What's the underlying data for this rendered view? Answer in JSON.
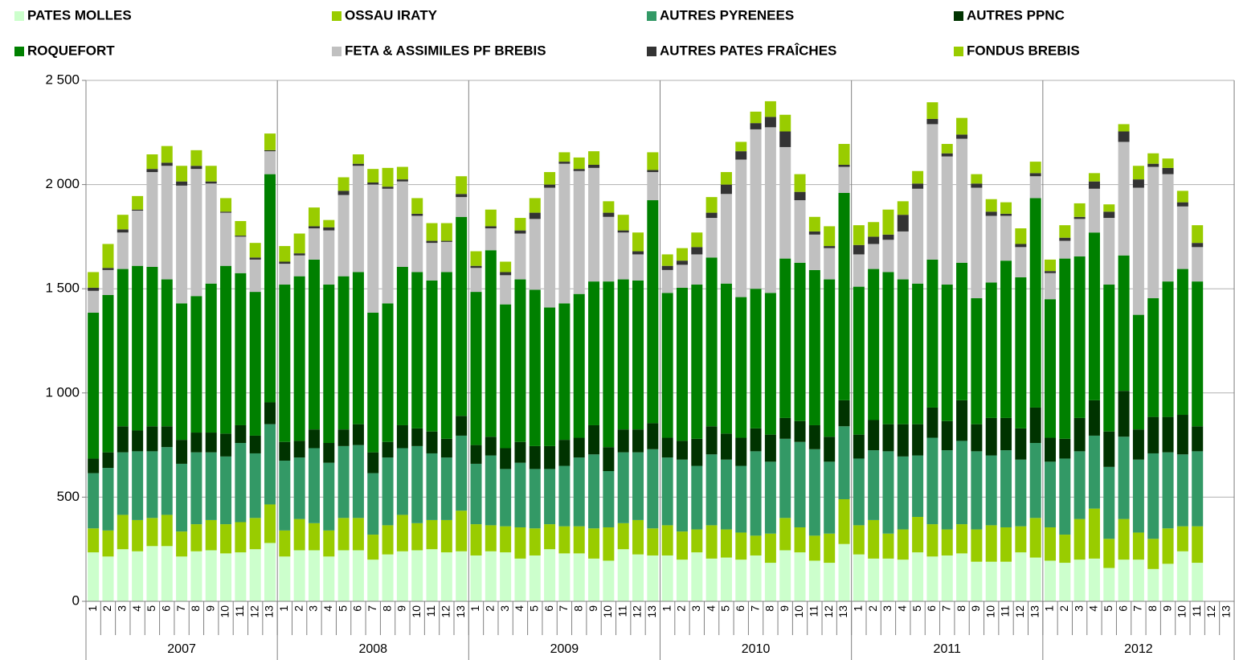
{
  "chart_data": {
    "type": "stacked_bar",
    "categories": [
      "1",
      "2",
      "3",
      "4",
      "5",
      "6",
      "7",
      "8",
      "9",
      "10",
      "11",
      "12",
      "13",
      "1",
      "2",
      "3",
      "4",
      "5",
      "6",
      "7",
      "8",
      "9",
      "10",
      "11",
      "12",
      "13",
      "1",
      "2",
      "3",
      "4",
      "5",
      "6",
      "7",
      "8",
      "9",
      "10",
      "11",
      "12",
      "13",
      "1",
      "2",
      "3",
      "4",
      "5",
      "6",
      "7",
      "8",
      "9",
      "10",
      "11",
      "12",
      "13",
      "1",
      "2",
      "3",
      "4",
      "5",
      "6",
      "7",
      "8",
      "9",
      "10",
      "11",
      "12",
      "13",
      "1",
      "2",
      "3",
      "4",
      "5",
      "6",
      "7",
      "8",
      "9",
      "10",
      "11",
      "12",
      "13"
    ],
    "category_groups": [
      "2007",
      "2008",
      "2009",
      "2010",
      "2011",
      "2012"
    ],
    "ylim": [
      0,
      2500
    ],
    "yticks": [
      0,
      500,
      {
        "value": 1000,
        "label": "1 000"
      },
      {
        "value": 1500,
        "label": "1 500"
      },
      {
        "value": 2000,
        "label": "2 000"
      },
      {
        "value": 2500,
        "label": "2 500"
      }
    ],
    "grid": true,
    "series": [
      {
        "name": "PATES MOLLES",
        "color": "#ccffcc",
        "values": [
          235,
          215,
          250,
          240,
          265,
          265,
          215,
          240,
          245,
          230,
          235,
          250,
          280,
          215,
          245,
          245,
          215,
          245,
          245,
          200,
          225,
          240,
          245,
          250,
          235,
          240,
          220,
          240,
          235,
          205,
          220,
          250,
          230,
          230,
          205,
          195,
          250,
          225,
          220,
          220,
          200,
          235,
          205,
          210,
          200,
          220,
          185,
          245,
          235,
          195,
          185,
          275,
          225,
          205,
          205,
          200,
          235,
          215,
          220,
          230,
          190,
          190,
          190,
          235,
          210,
          195,
          185,
          200,
          205,
          160,
          200,
          200,
          155,
          180,
          240,
          185,
          null,
          null
        ]
      },
      {
        "name": "OSSAU IRATY",
        "color": "#99cc00",
        "values": [
          115,
          125,
          165,
          150,
          135,
          150,
          120,
          130,
          145,
          140,
          145,
          150,
          185,
          125,
          150,
          130,
          125,
          155,
          155,
          120,
          140,
          175,
          130,
          140,
          155,
          195,
          150,
          125,
          125,
          150,
          130,
          120,
          130,
          130,
          145,
          160,
          125,
          165,
          130,
          145,
          135,
          110,
          160,
          135,
          130,
          95,
          140,
          155,
          120,
          120,
          140,
          215,
          140,
          185,
          120,
          145,
          170,
          155,
          125,
          140,
          155,
          175,
          165,
          125,
          190,
          160,
          135,
          195,
          240,
          140,
          195,
          130,
          145,
          170,
          120,
          175,
          null,
          null
        ]
      },
      {
        "name": "AUTRES PYRENEES",
        "color": "#339966",
        "values": [
          265,
          300,
          300,
          330,
          320,
          325,
          325,
          345,
          325,
          325,
          380,
          310,
          385,
          335,
          295,
          360,
          325,
          345,
          350,
          295,
          325,
          320,
          370,
          320,
          300,
          360,
          290,
          335,
          275,
          310,
          285,
          265,
          290,
          330,
          355,
          270,
          340,
          325,
          380,
          325,
          345,
          305,
          340,
          335,
          320,
          405,
          345,
          380,
          410,
          415,
          345,
          350,
          320,
          335,
          395,
          350,
          295,
          415,
          380,
          400,
          375,
          335,
          370,
          320,
          360,
          315,
          365,
          325,
          350,
          345,
          395,
          350,
          410,
          365,
          345,
          360,
          null,
          null
        ]
      },
      {
        "name": "AUTRES PPNC",
        "color": "#003300",
        "values": [
          70,
          75,
          125,
          100,
          120,
          100,
          115,
          95,
          95,
          110,
          85,
          85,
          105,
          90,
          80,
          90,
          95,
          80,
          100,
          100,
          75,
          110,
          85,
          105,
          90,
          95,
          90,
          90,
          100,
          100,
          110,
          110,
          125,
          95,
          140,
          115,
          110,
          110,
          125,
          95,
          90,
          130,
          135,
          125,
          135,
          110,
          130,
          100,
          100,
          115,
          120,
          125,
          115,
          145,
          130,
          155,
          150,
          145,
          140,
          195,
          130,
          180,
          155,
          150,
          170,
          115,
          95,
          160,
          170,
          170,
          220,
          145,
          175,
          170,
          190,
          120,
          null,
          null
        ]
      },
      {
        "name": "ROQUEFORT",
        "color": "#008000",
        "values": [
          700,
          755,
          755,
          790,
          765,
          705,
          655,
          655,
          715,
          805,
          730,
          690,
          1095,
          755,
          790,
          815,
          760,
          735,
          730,
          670,
          665,
          760,
          750,
          725,
          800,
          955,
          735,
          895,
          690,
          780,
          750,
          665,
          655,
          690,
          690,
          795,
          720,
          715,
          1070,
          695,
          735,
          740,
          810,
          720,
          675,
          670,
          680,
          765,
          760,
          745,
          755,
          995,
          710,
          725,
          730,
          695,
          675,
          710,
          655,
          660,
          605,
          650,
          755,
          725,
          1005,
          665,
          865,
          775,
          805,
          705,
          650,
          550,
          570,
          650,
          700,
          695,
          null,
          null
        ]
      },
      {
        "name": "FETA & ASSIMILES PF BREBIS",
        "color": "#c0c0c0",
        "values": [
          105,
          120,
          175,
          265,
          455,
          545,
          565,
          610,
          480,
          255,
          175,
          155,
          110,
          100,
          100,
          150,
          260,
          390,
          510,
          615,
          550,
          410,
          270,
          180,
          145,
          95,
          115,
          105,
          140,
          220,
          340,
          575,
          670,
          590,
          545,
          310,
          225,
          125,
          135,
          110,
          110,
          145,
          190,
          430,
          660,
          765,
          795,
          535,
          300,
          170,
          150,
          125,
          155,
          120,
          155,
          230,
          455,
          650,
          615,
          595,
          530,
          320,
          215,
          145,
          105,
          125,
          85,
          180,
          210,
          320,
          545,
          610,
          630,
          515,
          300,
          165,
          null,
          null
        ]
      },
      {
        "name": "AUTRES PATES FRAÎCHES",
        "color": "#333333",
        "values": [
          15,
          10,
          15,
          5,
          15,
          15,
          20,
          15,
          10,
          5,
          5,
          10,
          5,
          10,
          10,
          10,
          15,
          20,
          10,
          10,
          10,
          10,
          10,
          10,
          5,
          15,
          10,
          10,
          15,
          15,
          30,
          15,
          10,
          10,
          15,
          20,
          10,
          15,
          10,
          20,
          20,
          35,
          25,
          45,
          40,
          30,
          50,
          75,
          40,
          15,
          10,
          10,
          45,
          35,
          25,
          80,
          25,
          25,
          15,
          20,
          20,
          20,
          10,
          15,
          15,
          10,
          15,
          10,
          35,
          30,
          50,
          40,
          15,
          30,
          20,
          20,
          null,
          null
        ]
      },
      {
        "name": "FONDUS BREBIS",
        "color": "#99cc00",
        "values": [
          75,
          115,
          70,
          65,
          70,
          80,
          75,
          75,
          75,
          65,
          70,
          70,
          80,
          75,
          95,
          90,
          35,
          65,
          45,
          65,
          90,
          60,
          75,
          85,
          85,
          85,
          70,
          80,
          50,
          60,
          70,
          60,
          45,
          55,
          65,
          55,
          75,
          90,
          85,
          55,
          60,
          70,
          75,
          60,
          45,
          55,
          75,
          80,
          85,
          70,
          95,
          100,
          95,
          70,
          120,
          65,
          60,
          80,
          45,
          80,
          45,
          60,
          55,
          75,
          55,
          55,
          60,
          65,
          40,
          35,
          35,
          65,
          50,
          45,
          55,
          85,
          null,
          null
        ]
      }
    ]
  }
}
